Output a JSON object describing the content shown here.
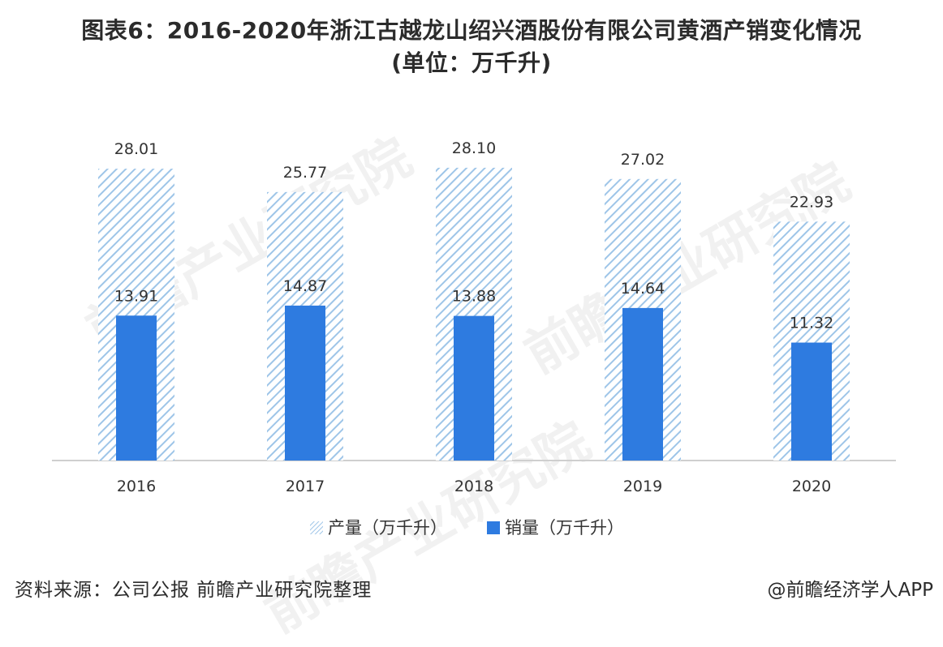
{
  "header": {
    "title_line1": "图表6：2016-2020年浙江古越龙山绍兴酒股份有限公司黄酒产销变化情况",
    "title_line2": "(单位：万千升)"
  },
  "footer": {
    "source": "资料来源：公司公报 前瞻产业研究院整理",
    "credit": "@前瞻经济学人APP"
  },
  "watermark_text": "前瞻产业研究院",
  "chart_data": {
    "type": "bar",
    "categories": [
      "2016",
      "2017",
      "2018",
      "2019",
      "2020"
    ],
    "series": [
      {
        "name": "产量（万千升）",
        "values": [
          28.01,
          25.77,
          28.1,
          27.02,
          22.93
        ],
        "color": "#9ec5e8",
        "style": "hatched"
      },
      {
        "name": "销量（万千升）",
        "values": [
          13.91,
          14.87,
          13.88,
          14.64,
          11.32
        ],
        "color": "#2e7be0",
        "style": "solid"
      }
    ],
    "ylim": [
      0,
      30
    ],
    "grid": false,
    "legend_position": "bottom",
    "data_labels": true
  }
}
